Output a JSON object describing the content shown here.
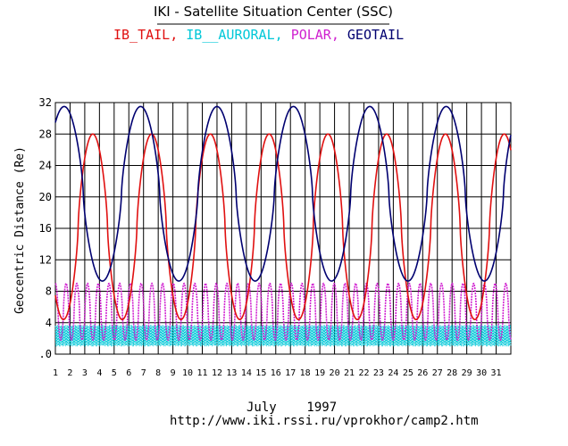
{
  "chart_data": {
    "type": "line",
    "title": "IKI - Satellite Situation Center (SSC)",
    "ylabel": "Geocentric Distance (Re)",
    "xlabel": "",
    "period_label": "July    1997",
    "url": "http://www.iki.rssi.ru/vprokhor/camp2.htm",
    "xlim": [
      1,
      32
    ],
    "ylim": [
      0,
      32
    ],
    "x_ticks": [
      "1",
      "2",
      "3",
      "4",
      "5",
      "6",
      "7",
      "8",
      "9",
      "10",
      "11",
      "12",
      "13",
      "14",
      "15",
      "16",
      "17",
      "18",
      "19",
      "20",
      "21",
      "22",
      "23",
      "24",
      "25",
      "26",
      "27",
      "28",
      "29",
      "30",
      "31"
    ],
    "y_ticks": [
      ".0",
      "4",
      "8",
      "12",
      "16",
      "20",
      "24",
      "28",
      "32"
    ],
    "grid": true,
    "legend_placement": "top",
    "series": [
      {
        "name": "IB_TAIL",
        "color": "#e01010",
        "apogee": 28.0,
        "perigee": 4.4,
        "period_days": 4.0,
        "first_apogee_day": 3.55
      },
      {
        "name": "IB__AURORAL",
        "color": "#00c8d8",
        "apogee": 3.6,
        "perigee": 1.1,
        "period_days": 0.08,
        "first_apogee_day": 1.0
      },
      {
        "name": "POLAR",
        "color": "#d020d0",
        "apogee": 9.0,
        "perigee": 1.8,
        "period_days": 0.73,
        "first_apogee_day": 1.0
      },
      {
        "name": "GEOTAIL",
        "color": "#000070",
        "apogee": 31.5,
        "perigee": 9.3,
        "period_days": 5.2,
        "first_apogee_day": 1.6
      }
    ]
  }
}
